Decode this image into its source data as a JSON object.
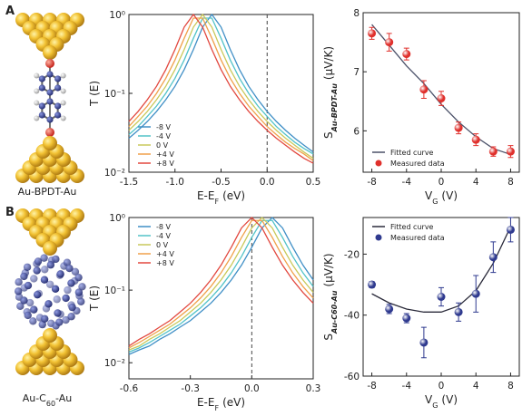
{
  "panel_labels": [
    "A",
    "B"
  ],
  "molecules": [
    {
      "label": "Au-BPDT-Au"
    },
    {
      "label": "Au-C",
      "label_sub": "60",
      "label_post": "-Au"
    }
  ],
  "chart_data": [
    {
      "type": "line",
      "log_y": true,
      "ylabel": "T (E)",
      "xlabel": "E-E",
      "xlabel_sub": "F",
      "xlabel_unit": "(eV)",
      "xlim": [
        -1.5,
        0.5
      ],
      "xticks": [
        -1.5,
        {
          "value": -1,
          "label": "-1.0"
        },
        -0.5,
        {
          "value": 0,
          "label": "0.0"
        },
        0.5
      ],
      "ylim": [
        0.01,
        1
      ],
      "yticks": [
        {
          "value": 0.01,
          "label": "10⁻²"
        },
        {
          "value": 0.1,
          "label": "10⁻¹"
        },
        {
          "value": 1,
          "label": "10⁰"
        }
      ],
      "reference_x": 0,
      "legend": "lower left",
      "x": [
        -1.5,
        -1.4,
        -1.3,
        -1.2,
        -1.1,
        -1.0,
        -0.9,
        -0.8,
        -0.7,
        -0.6,
        -0.5,
        -0.4,
        -0.3,
        -0.2,
        -0.1,
        0,
        0.1,
        0.2,
        0.3,
        0.4,
        0.5
      ],
      "series": [
        {
          "name": "-8 V",
          "color": "#3f8fc6",
          "values": [
            0.027,
            0.034,
            0.044,
            0.059,
            0.083,
            0.123,
            0.2,
            0.36,
            0.692,
            1,
            0.692,
            0.36,
            0.2,
            0.123,
            0.083,
            0.059,
            0.044,
            0.034,
            0.027,
            0.022,
            0.018
          ]
        },
        {
          "name": "-4 V",
          "color": "#52c3c8",
          "values": [
            0.03,
            0.038,
            0.051,
            0.069,
            0.1,
            0.155,
            0.265,
            0.5,
            0.9,
            0.9,
            0.5,
            0.265,
            0.155,
            0.1,
            0.069,
            0.051,
            0.038,
            0.03,
            0.024,
            0.02,
            0.017
          ]
        },
        {
          "name": "0 V",
          "color": "#c9c95a",
          "values": [
            0.034,
            0.044,
            0.059,
            0.083,
            0.123,
            0.2,
            0.36,
            0.692,
            1,
            0.692,
            0.36,
            0.2,
            0.123,
            0.083,
            0.059,
            0.044,
            0.034,
            0.027,
            0.022,
            0.018,
            0.015
          ]
        },
        {
          "name": "+4 V",
          "color": "#f0a14a",
          "values": [
            0.038,
            0.051,
            0.069,
            0.1,
            0.155,
            0.265,
            0.5,
            0.9,
            0.9,
            0.5,
            0.265,
            0.155,
            0.1,
            0.069,
            0.051,
            0.038,
            0.03,
            0.024,
            0.02,
            0.017,
            0.014
          ]
        },
        {
          "name": "+8 V",
          "color": "#e2483f",
          "values": [
            0.044,
            0.059,
            0.083,
            0.123,
            0.2,
            0.36,
            0.692,
            1,
            0.692,
            0.36,
            0.2,
            0.123,
            0.083,
            0.059,
            0.044,
            0.034,
            0.027,
            0.022,
            0.018,
            0.015,
            0.013
          ]
        }
      ]
    },
    {
      "type": "scatter",
      "ylabel": "S",
      "ylabel_sub": "Au-BPDT-Au",
      "ylabel_unit": "(μV/K)",
      "xlabel": "V",
      "xlabel_sub": "G",
      "xlabel_unit": "(V)",
      "xlim": [
        -9,
        9
      ],
      "xticks": [
        -8,
        -4,
        0,
        4,
        8
      ],
      "ylim": [
        5.3,
        8
      ],
      "yticks": [
        6,
        7,
        8
      ],
      "legend": "lower left",
      "x": [
        -8,
        -6,
        -4,
        -2,
        0,
        2,
        4,
        6,
        8
      ],
      "series": [
        {
          "name": "Fitted curve",
          "style": "line",
          "color": "#4a5068",
          "values": [
            7.8,
            7.45,
            7.1,
            6.8,
            6.45,
            6.15,
            5.9,
            5.7,
            5.6
          ]
        },
        {
          "name": "Measured data",
          "style": "marker",
          "color": "#e0302c",
          "values": [
            7.65,
            7.5,
            7.3,
            6.7,
            6.55,
            6.05,
            5.85,
            5.65,
            5.65
          ],
          "errors": [
            0.1,
            0.15,
            0.1,
            0.15,
            0.12,
            0.1,
            0.1,
            0.08,
            0.1
          ]
        }
      ]
    },
    {
      "type": "line",
      "log_y": true,
      "ylabel": "T (E)",
      "xlabel": "E-E",
      "xlabel_sub": "F",
      "xlabel_unit": "(eV)",
      "xlim": [
        -0.6,
        0.3
      ],
      "xticks": [
        -0.6,
        -0.3,
        {
          "value": 0,
          "label": "0.0"
        },
        0.3
      ],
      "ylim": [
        0.006,
        1
      ],
      "yticks": [
        {
          "value": 0.01,
          "label": "10⁻²"
        },
        {
          "value": 0.1,
          "label": "10⁻¹"
        },
        {
          "value": 1,
          "label": "10⁰"
        }
      ],
      "reference_x": 0,
      "legend": "upper left",
      "x": [
        -0.6,
        -0.55,
        -0.5,
        -0.45,
        -0.4,
        -0.35,
        -0.3,
        -0.25,
        -0.2,
        -0.15,
        -0.1,
        -0.05,
        0,
        0.05,
        0.1,
        0.15,
        0.2,
        0.25,
        0.3
      ],
      "series": [
        {
          "name": "-8 V",
          "color": "#3f8fc6",
          "values": [
            0.013,
            0.015,
            0.017,
            0.021,
            0.025,
            0.031,
            0.038,
            0.05,
            0.066,
            0.093,
            0.138,
            0.221,
            0.39,
            0.719,
            1,
            0.719,
            0.39,
            0.221,
            0.138
          ]
        },
        {
          "name": "-4 V",
          "color": "#52c3c8",
          "values": [
            0.014,
            0.016,
            0.019,
            0.023,
            0.028,
            0.034,
            0.044,
            0.057,
            0.078,
            0.112,
            0.173,
            0.291,
            0.532,
            0.911,
            0.911,
            0.532,
            0.291,
            0.173,
            0.112
          ]
        },
        {
          "name": "0 V",
          "color": "#c9c95a",
          "values": [
            0.015,
            0.017,
            0.021,
            0.025,
            0.031,
            0.038,
            0.05,
            0.066,
            0.093,
            0.138,
            0.221,
            0.39,
            0.719,
            1,
            0.719,
            0.39,
            0.221,
            0.138,
            0.093
          ]
        },
        {
          "name": "+4 V",
          "color": "#f0a14a",
          "values": [
            0.016,
            0.019,
            0.023,
            0.028,
            0.034,
            0.044,
            0.057,
            0.078,
            0.112,
            0.173,
            0.291,
            0.532,
            0.911,
            0.911,
            0.532,
            0.291,
            0.173,
            0.112,
            0.078
          ]
        },
        {
          "name": "+8 V",
          "color": "#e2483f",
          "values": [
            0.017,
            0.021,
            0.025,
            0.031,
            0.038,
            0.05,
            0.066,
            0.093,
            0.138,
            0.221,
            0.39,
            0.719,
            1,
            0.719,
            0.39,
            0.221,
            0.138,
            0.093,
            0.066
          ]
        }
      ]
    },
    {
      "type": "scatter",
      "ylabel": "S",
      "ylabel_sub": "Au-C60-Au",
      "ylabel_unit": "(μV/K)",
      "xlabel": "V",
      "xlabel_sub": "G",
      "xlabel_unit": "(V)",
      "xlim": [
        -9,
        9
      ],
      "xticks": [
        -8,
        -4,
        0,
        4,
        8
      ],
      "ylim": [
        -60,
        -8
      ],
      "yticks": [
        -60,
        -40,
        -20
      ],
      "legend": "upper left",
      "x": [
        -8,
        -6,
        -4,
        -2,
        0,
        2,
        4,
        6,
        8
      ],
      "series": [
        {
          "name": "Fitted curve",
          "style": "line",
          "color": "#2a2a3a",
          "values": [
            -33,
            -36,
            -38,
            -39,
            -39,
            -37,
            -32,
            -23,
            -11
          ]
        },
        {
          "name": "Measured data",
          "style": "marker",
          "color": "#2f3a8f",
          "values": [
            -30,
            -38,
            -41,
            -49,
            -34,
            -39,
            -33,
            -21,
            -12
          ],
          "errors": [
            1,
            1.5,
            1.5,
            5,
            3,
            3,
            6,
            5,
            4
          ]
        }
      ]
    }
  ]
}
